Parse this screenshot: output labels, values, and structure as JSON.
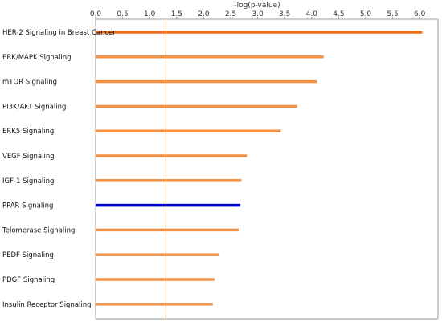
{
  "chart_data": {
    "type": "bar",
    "orientation": "horizontal",
    "xlabel": "-log(p-value)",
    "xlim": [
      0,
      6.2
    ],
    "xticks": [
      "0.0",
      "0.5",
      "1.0",
      "1.5",
      "2.0",
      "2.5",
      "3.0",
      "3.5",
      "4.0",
      "4.5",
      "5.0",
      "5.5",
      "6.0"
    ],
    "threshold": 1.3,
    "categories": [
      "HER-2 Signaling in Breast Cancer",
      "ERK/MAPK Signaling",
      "mTOR Signaling",
      "PI3K/AKT Signaling",
      "ERK5 Signaling",
      "VEGF Signaling",
      "IGF-1 Signaling",
      "PPAR Signaling",
      "Telomerase Signaling",
      "PEDF Signaling",
      "PDGF Signaling",
      "Insulin Receptor Signaling"
    ],
    "values": [
      6.05,
      4.22,
      4.1,
      3.73,
      3.43,
      2.8,
      2.7,
      2.68,
      2.65,
      2.28,
      2.2,
      2.17
    ],
    "bar_colors": [
      "#ee6f1f",
      "#f19145",
      "#f19145",
      "#f19145",
      "#f19145",
      "#f19145",
      "#f19145",
      "#0000cc",
      "#f19145",
      "#f19145",
      "#f19145",
      "#f19145"
    ],
    "colors": {
      "threshold_line": "#f5c98a",
      "axis": "#9a9a9a"
    },
    "grid": false
  }
}
